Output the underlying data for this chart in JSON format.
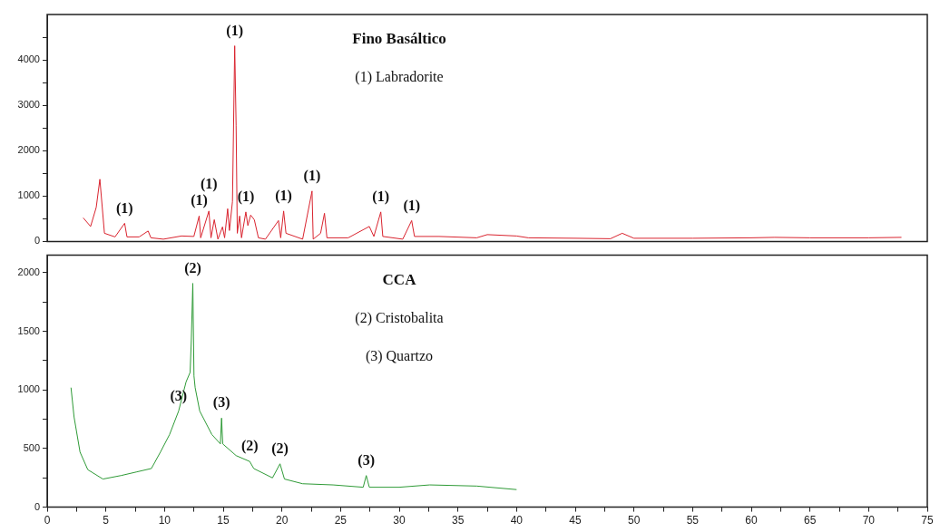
{
  "chart_data": [
    {
      "type": "line",
      "xlim": [
        0,
        75
      ],
      "ylim": [
        0,
        5000
      ],
      "tick_labels": "y",
      "yticks": [
        0,
        {
          "value": 500,
          "label": null
        },
        1000,
        {
          "value": 1500,
          "label": null
        },
        2000,
        {
          "value": 2500,
          "label": null
        },
        3000,
        {
          "value": 3500,
          "label": null
        },
        4000,
        {
          "value": 4500,
          "label": null
        }
      ],
      "grid": false,
      "legend": false,
      "marker": "none",
      "line_style": "solid",
      "series": [
        {
          "color": "#d9232e",
          "x": [
            3.07,
            3.7,
            4.18,
            4.49,
            4.88,
            5.78,
            6.6,
            6.8,
            7.84,
            8.6,
            8.84,
            9.9,
            11.45,
            12.5,
            12.95,
            13.08,
            13.78,
            13.96,
            14.24,
            14.55,
            14.94,
            15.12,
            15.38,
            15.53,
            15.79,
            15.98,
            16.1,
            16.2,
            16.4,
            16.56,
            16.93,
            17.1,
            17.34,
            17.65,
            18.0,
            18.6,
            19.71,
            19.9,
            20.15,
            20.35,
            21.77,
            22.57,
            22.67,
            23.3,
            23.63,
            23.84,
            25.65,
            27.45,
            27.84,
            28.43,
            28.6,
            30.3,
            31.06,
            31.3,
            33.4,
            36.6,
            37.5,
            40,
            41,
            45,
            48,
            49,
            50,
            55,
            60,
            62,
            65,
            70,
            72.8
          ],
          "values": [
            520,
            330,
            750,
            1370,
            180,
            100,
            400,
            100,
            100,
            230,
            80,
            50,
            120,
            110,
            560,
            80,
            670,
            80,
            480,
            50,
            320,
            80,
            720,
            240,
            880,
            4310,
            2560,
            180,
            560,
            80,
            650,
            350,
            580,
            480,
            80,
            50,
            460,
            80,
            670,
            180,
            50,
            1110,
            50,
            180,
            620,
            80,
            80,
            330,
            110,
            650,
            110,
            50,
            460,
            110,
            110,
            80,
            150,
            120,
            80,
            70,
            60,
            180,
            70,
            70,
            80,
            90,
            80,
            80,
            90
          ]
        }
      ],
      "annotations": [
        "Fino Basáltico",
        "(1) Labradorite",
        {
          "text": "(1)",
          "x": 6.6,
          "y": 400
        },
        {
          "text": "(1)",
          "x": 12.95,
          "y": 560
        },
        {
          "text": "(1)",
          "x": 13.78,
          "y": 670
        },
        {
          "text": "(1)",
          "x": 15.98,
          "y": 4310
        },
        {
          "text": "(1)",
          "x": 16.93,
          "y": 650
        },
        {
          "text": "(1)",
          "x": 20.15,
          "y": 670
        },
        {
          "text": "(1)",
          "x": 22.57,
          "y": 1110
        },
        {
          "text": "(1)",
          "x": 28.43,
          "y": 650
        },
        {
          "text": "(1)",
          "x": 31.06,
          "y": 460
        }
      ]
    },
    {
      "type": "line",
      "xlim": [
        0,
        75
      ],
      "ylim": [
        0,
        2150
      ],
      "xticks": [
        0,
        {
          "value": 2.5,
          "label": null
        },
        5,
        {
          "value": 7.5,
          "label": null
        },
        10,
        {
          "value": 12.5,
          "label": null
        },
        15,
        {
          "value": 17.5,
          "label": null
        },
        20,
        {
          "value": 22.5,
          "label": null
        },
        25,
        {
          "value": 27.5,
          "label": null
        },
        30,
        {
          "value": 32.5,
          "label": null
        },
        35,
        {
          "value": 37.5,
          "label": null
        },
        40,
        {
          "value": 42.5,
          "label": null
        },
        45,
        {
          "value": 47.5,
          "label": null
        },
        50,
        {
          "value": 52.5,
          "label": null
        },
        55,
        {
          "value": 57.5,
          "label": null
        },
        60,
        {
          "value": 62.5,
          "label": null
        },
        65,
        {
          "value": 67.5,
          "label": null
        },
        70,
        {
          "value": 72.5,
          "label": null
        },
        75
      ],
      "yticks": [
        0,
        {
          "value": 250,
          "label": null
        },
        500,
        {
          "value": 750,
          "label": null
        },
        1000,
        {
          "value": 1250,
          "label": null
        },
        1500,
        {
          "value": 1750,
          "label": null
        },
        2000
      ],
      "grid": false,
      "legend": false,
      "marker": "none",
      "line_style": "solid",
      "series": [
        {
          "color": "#2e9a36",
          "x": [
            2.03,
            2.29,
            2.8,
            3.46,
            4.75,
            6.3,
            7.59,
            8.88,
            9.65,
            10.43,
            11.2,
            11.84,
            12.18,
            12.28,
            12.41,
            12.51,
            12.61,
            13.0,
            14.03,
            14.76,
            14.86,
            14.96,
            16.1,
            17.26,
            17.6,
            19.2,
            19.84,
            20.22,
            21.77,
            24.36,
            26.93,
            27.19,
            27.45,
            30.0,
            32.6,
            36.6,
            40.0
          ],
          "values": [
            1020,
            770,
            470,
            320,
            240,
            270,
            300,
            330,
            470,
            620,
            820,
            1070,
            1150,
            1420,
            1910,
            1120,
            1020,
            820,
            620,
            540,
            760,
            540,
            440,
            390,
            330,
            250,
            370,
            240,
            200,
            190,
            170,
            270,
            170,
            170,
            190,
            180,
            150
          ]
        }
      ],
      "annotations": [
        "CCA",
        "(2) Cristobalita",
        "(3) Quartzo",
        {
          "text": "(2)",
          "x": 12.41,
          "y": 1910
        },
        {
          "text": "(3)",
          "x": 11.2,
          "y": 820
        },
        {
          "text": "(3)",
          "x": 14.86,
          "y": 760
        },
        {
          "text": "(2)",
          "x": 17.26,
          "y": 390
        },
        {
          "text": "(2)",
          "x": 19.84,
          "y": 370
        },
        {
          "text": "(3)",
          "x": 27.19,
          "y": 270
        }
      ]
    }
  ]
}
